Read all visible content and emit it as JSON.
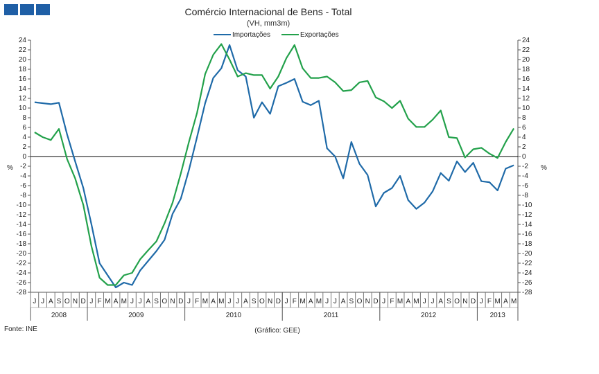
{
  "header": {
    "logo_icon": "logo-blocks-icon",
    "accent_color": "#1f5fa6"
  },
  "chart_data": {
    "type": "line",
    "title": "Comércio Internacional de Bens - Total",
    "subtitle": "(VH, mm3m)",
    "ylabel_left": "%",
    "ylabel_right": "%",
    "ylim": [
      -28,
      24
    ],
    "ytick_step": 2,
    "month_labels": [
      "J",
      "J",
      "A",
      "S",
      "O",
      "N",
      "D",
      "J",
      "F",
      "M",
      "A",
      "M",
      "J",
      "J",
      "A",
      "S",
      "O",
      "N",
      "D",
      "J",
      "F",
      "M",
      "A",
      "M",
      "J",
      "J",
      "A",
      "S",
      "O",
      "N",
      "D",
      "J",
      "F",
      "M",
      "A",
      "M",
      "J",
      "J",
      "A",
      "S",
      "O",
      "N",
      "D",
      "J",
      "F",
      "M",
      "A",
      "M",
      "J",
      "J",
      "A",
      "S",
      "O",
      "N",
      "D",
      "J",
      "F",
      "M",
      "A",
      "M"
    ],
    "years": [
      {
        "label": "2008",
        "start": 0,
        "count": 7
      },
      {
        "label": "2009",
        "start": 7,
        "count": 12
      },
      {
        "label": "2010",
        "start": 19,
        "count": 12
      },
      {
        "label": "2011",
        "start": 31,
        "count": 12
      },
      {
        "label": "2012",
        "start": 43,
        "count": 12
      },
      {
        "label": "2013",
        "start": 55,
        "count": 5
      }
    ],
    "series": [
      {
        "name": "Importações",
        "color": "#1f6aa8",
        "values": [
          11.2,
          11.0,
          10.8,
          11.1,
          4.6,
          -1.0,
          -6.5,
          -14.0,
          -22.0,
          -24.5,
          -27.0,
          -26.0,
          -26.5,
          -23.5,
          -21.5,
          -19.5,
          -17.2,
          -11.8,
          -8.7,
          -2.8,
          4.0,
          11.0,
          16.2,
          18.2,
          23.0,
          17.8,
          16.5,
          8.0,
          11.2,
          8.8,
          14.5,
          15.2,
          16.0,
          11.3,
          10.6,
          11.5,
          1.7,
          0.0,
          -4.5,
          3.0,
          -1.5,
          -3.8,
          -10.3,
          -7.5,
          -6.5,
          -4.0,
          -9.0,
          -10.8,
          -9.5,
          -7.2,
          -3.4,
          -5.0,
          -1.0,
          -3.2,
          -1.3,
          -5.1,
          -5.3,
          -7.0,
          -2.5,
          -1.8
        ]
      },
      {
        "name": "Exportações",
        "color": "#23a14b",
        "values": [
          5.0,
          4.0,
          3.4,
          5.7,
          -0.5,
          -4.5,
          -10.0,
          -18.5,
          -25.0,
          -26.5,
          -26.5,
          -24.5,
          -24.0,
          -21.2,
          -19.3,
          -17.5,
          -13.8,
          -9.5,
          -3.5,
          3.0,
          9.0,
          17.0,
          21.0,
          23.2,
          20.0,
          16.5,
          17.2,
          16.8,
          16.8,
          14.0,
          16.5,
          20.3,
          23.0,
          18.2,
          16.2,
          16.2,
          16.5,
          15.3,
          13.5,
          13.7,
          15.3,
          15.6,
          12.2,
          11.4,
          10.0,
          11.5,
          7.8,
          6.1,
          6.1,
          7.6,
          9.5,
          4.0,
          3.8,
          -0.2,
          1.5,
          1.8,
          0.6,
          -0.3,
          3.0,
          5.8
        ]
      }
    ]
  },
  "footer": {
    "source": "Fonte: INE",
    "credit": "(Gráfico: GEE)"
  }
}
